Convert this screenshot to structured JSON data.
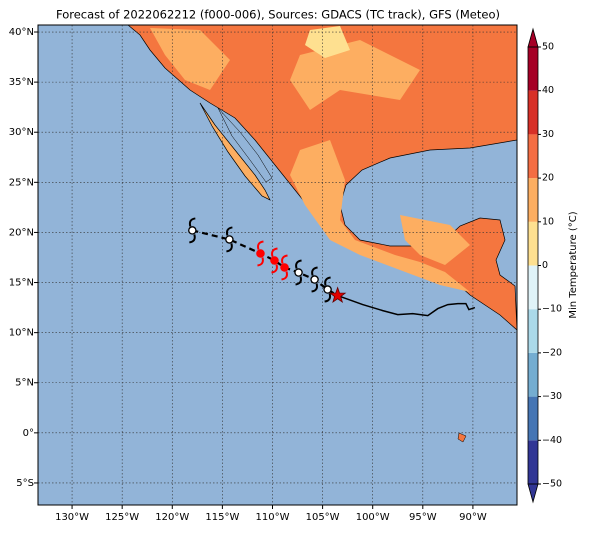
{
  "map": {
    "title": "Forecast of 2022062212 (f000-006), Sources: GDACS (TC track), GFS (Meteo)",
    "lon_range": [
      -133.4,
      -85.6
    ],
    "lat_range": [
      -7.2,
      40.7
    ],
    "lon_ticks": [
      {
        "value": -130,
        "label": "130°W"
      },
      {
        "value": -125,
        "label": "125°W"
      },
      {
        "value": -120,
        "label": "120°W"
      },
      {
        "value": -115,
        "label": "115°W"
      },
      {
        "value": -110,
        "label": "110°W"
      },
      {
        "value": -105,
        "label": "105°W"
      },
      {
        "value": -100,
        "label": "100°W"
      },
      {
        "value": -95,
        "label": "95°W"
      },
      {
        "value": -90,
        "label": "90°W"
      }
    ],
    "lat_ticks": [
      {
        "value": 40,
        "label": "40°N"
      },
      {
        "value": 35,
        "label": "35°N"
      },
      {
        "value": 30,
        "label": "30°N"
      },
      {
        "value": 25,
        "label": "25°N"
      },
      {
        "value": 20,
        "label": "20°N"
      },
      {
        "value": 15,
        "label": "15°N"
      },
      {
        "value": 10,
        "label": "10°N"
      },
      {
        "value": 5,
        "label": "5°N"
      },
      {
        "value": 0,
        "label": "0°"
      },
      {
        "value": -5,
        "label": "5°S"
      }
    ],
    "grid": true,
    "colorbar": {
      "label": "Min Temperature (°C)",
      "range": [
        -50,
        50
      ],
      "ticks": [
        {
          "value": -50,
          "label": "−50"
        },
        {
          "value": -40,
          "label": "−40"
        },
        {
          "value": -30,
          "label": "−30"
        },
        {
          "value": -20,
          "label": "−20"
        },
        {
          "value": -10,
          "label": "−10"
        },
        0,
        10,
        20,
        30,
        40,
        50
      ],
      "colors": [
        "#313695",
        "#4575b4",
        "#74add1",
        "#abd9e9",
        "#e0f3f8",
        "#fee090",
        "#fdae61",
        "#f46d43",
        "#d73027",
        "#a50026"
      ]
    },
    "track": {
      "lon": [
        -118.0,
        -114.3,
        -111.2,
        -109.8,
        -108.8,
        -107.4,
        -105.8,
        -104.5
      ],
      "lat": [
        20.2,
        19.3,
        17.9,
        17.2,
        16.5,
        16.0,
        15.3,
        14.3
      ],
      "colors": [
        "#ffffff",
        "#ffffff",
        "#ff0000",
        "#ff0000",
        "#ff0000",
        "#ffffff",
        "#ffffff",
        "#ffffff"
      ]
    },
    "current": {
      "lon": -103.5,
      "lat": 13.7,
      "color": "#e00000"
    },
    "past_track": {
      "lon": [
        -103.5,
        -101,
        -99,
        -97.5,
        -96,
        -94.5,
        -93.5,
        -92.5,
        -91.5,
        -90.7,
        -90.4,
        -89.8
      ],
      "lat": [
        13.7,
        12.8,
        12.2,
        11.8,
        11.9,
        11.7,
        12.4,
        12.8,
        12.9,
        12.9,
        12.3,
        12.5
      ]
    }
  }
}
